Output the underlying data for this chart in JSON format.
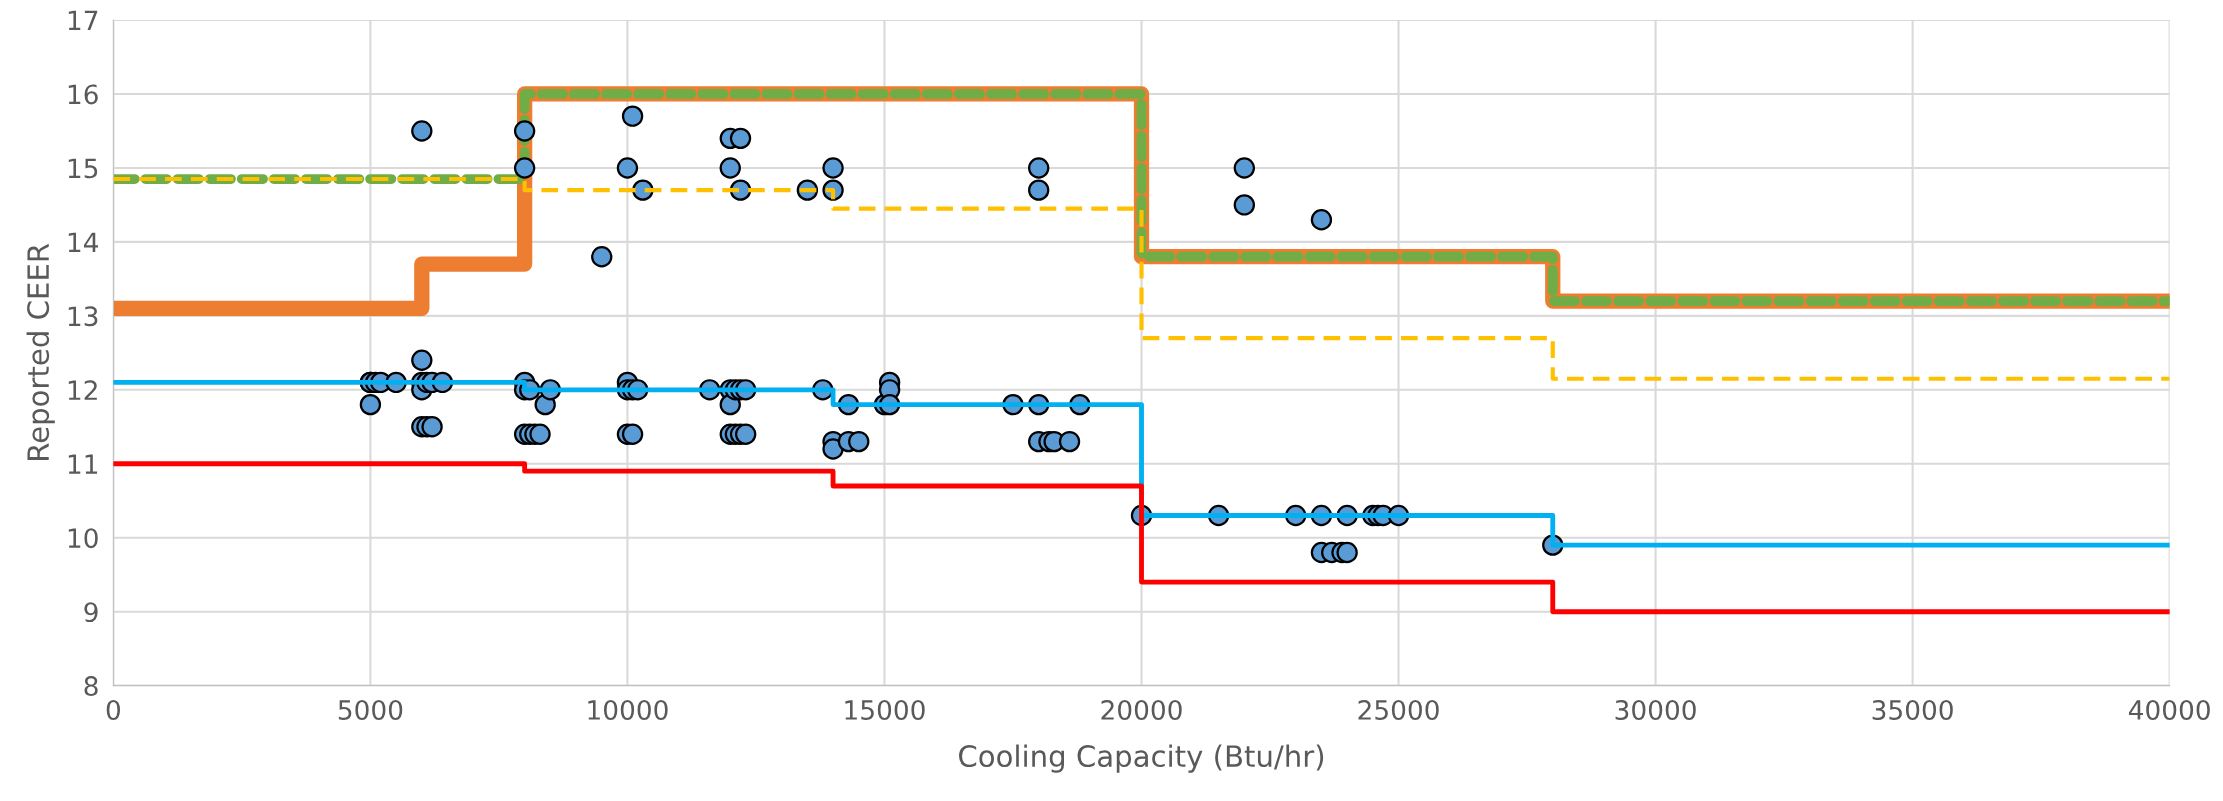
{
  "chart_data": {
    "type": "scatter",
    "xlabel": "Cooling Capacity (Btu/hr)",
    "ylabel": "Reported CEER",
    "xlim": [
      0,
      40000
    ],
    "ylim": [
      8,
      17
    ],
    "xticks": [
      0,
      5000,
      10000,
      15000,
      20000,
      25000,
      30000,
      35000,
      40000
    ],
    "yticks": [
      8,
      9,
      10,
      11,
      12,
      13,
      14,
      15,
      16,
      17
    ],
    "grid": true,
    "legend": false,
    "series": [
      {
        "type": "step",
        "color": "#ed7d31",
        "line_style": "solid",
        "marker": "none",
        "x": [
          0,
          6000,
          8000,
          20000,
          28000,
          40000
        ],
        "values": [
          13.1,
          13.7,
          16.0,
          13.8,
          13.2,
          13.2
        ]
      },
      {
        "type": "step",
        "color": "#70ad47",
        "line_style": "dashed",
        "marker": "none",
        "x": [
          0,
          8000,
          20000,
          28000,
          40000
        ],
        "values": [
          14.85,
          16.0,
          13.8,
          13.2,
          13.2
        ]
      },
      {
        "type": "step",
        "color": "#ffc000",
        "line_style": "dashed",
        "marker": "none",
        "x": [
          0,
          8000,
          14000,
          20000,
          28000,
          40000
        ],
        "values": [
          14.85,
          14.7,
          14.45,
          12.7,
          12.15,
          12.15
        ]
      },
      {
        "type": "step",
        "color": "#00b0f0",
        "line_style": "solid",
        "marker": "none",
        "x": [
          0,
          8000,
          14000,
          20000,
          28000,
          40000
        ],
        "values": [
          12.1,
          12.0,
          11.8,
          10.3,
          9.9,
          9.9
        ]
      },
      {
        "type": "step",
        "color": "#ff0000",
        "line_style": "solid",
        "marker": "none",
        "x": [
          0,
          8000,
          14000,
          20000,
          28000,
          40000
        ],
        "values": [
          11.0,
          10.9,
          10.7,
          9.4,
          9.0,
          9.0
        ]
      },
      {
        "color": "#5b9bd5",
        "marker": "circle",
        "x": [
          5000,
          5000,
          5000,
          5100,
          5200,
          5500,
          6000,
          6000,
          6000,
          6000,
          6000,
          6100,
          6100,
          6200,
          6200,
          6400,
          8000,
          8000,
          8000,
          8000,
          8000,
          8100,
          8100,
          8200,
          8300,
          8400,
          8500,
          9500,
          10000,
          10000,
          10000,
          10000,
          10100,
          10100,
          10100,
          10200,
          10300,
          11600,
          12000,
          12000,
          12000,
          12000,
          12000,
          12100,
          12100,
          12200,
          12200,
          12200,
          12200,
          12300,
          12300,
          13500,
          13800,
          14000,
          14000,
          14000,
          14000,
          14300,
          14300,
          14500,
          15000,
          15100,
          15100,
          15100,
          17500,
          18000,
          18000,
          18000,
          18000,
          18200,
          18300,
          18600,
          18800,
          20000,
          21500,
          22000,
          22000,
          23000,
          23500,
          23500,
          23500,
          23700,
          23900,
          24000,
          24000,
          24500,
          24600,
          24700,
          25000,
          28000
        ],
        "values": [
          12.1,
          12.1,
          11.8,
          12.1,
          12.1,
          12.1,
          15.5,
          12.4,
          12.1,
          12.0,
          11.5,
          12.1,
          11.5,
          12.1,
          11.5,
          12.1,
          15.5,
          15.0,
          12.1,
          12.0,
          11.4,
          12.0,
          11.4,
          11.4,
          11.4,
          11.8,
          12.0,
          13.8,
          15.0,
          12.1,
          12.0,
          11.4,
          15.7,
          12.0,
          11.4,
          12.0,
          14.7,
          12.0,
          15.4,
          15.0,
          12.0,
          11.8,
          11.4,
          12.0,
          11.4,
          15.4,
          14.7,
          12.0,
          11.4,
          12.0,
          11.4,
          14.7,
          12.0,
          15.0,
          14.7,
          11.3,
          11.2,
          11.8,
          11.3,
          11.3,
          11.8,
          12.1,
          12.0,
          11.8,
          11.8,
          15.0,
          14.7,
          11.8,
          11.3,
          11.3,
          11.3,
          11.3,
          11.8,
          10.3,
          10.3,
          15.0,
          14.5,
          10.3,
          14.3,
          10.3,
          9.8,
          9.8,
          9.8,
          10.3,
          9.8,
          10.3,
          10.3,
          10.3,
          10.3,
          9.9
        ]
      }
    ]
  }
}
